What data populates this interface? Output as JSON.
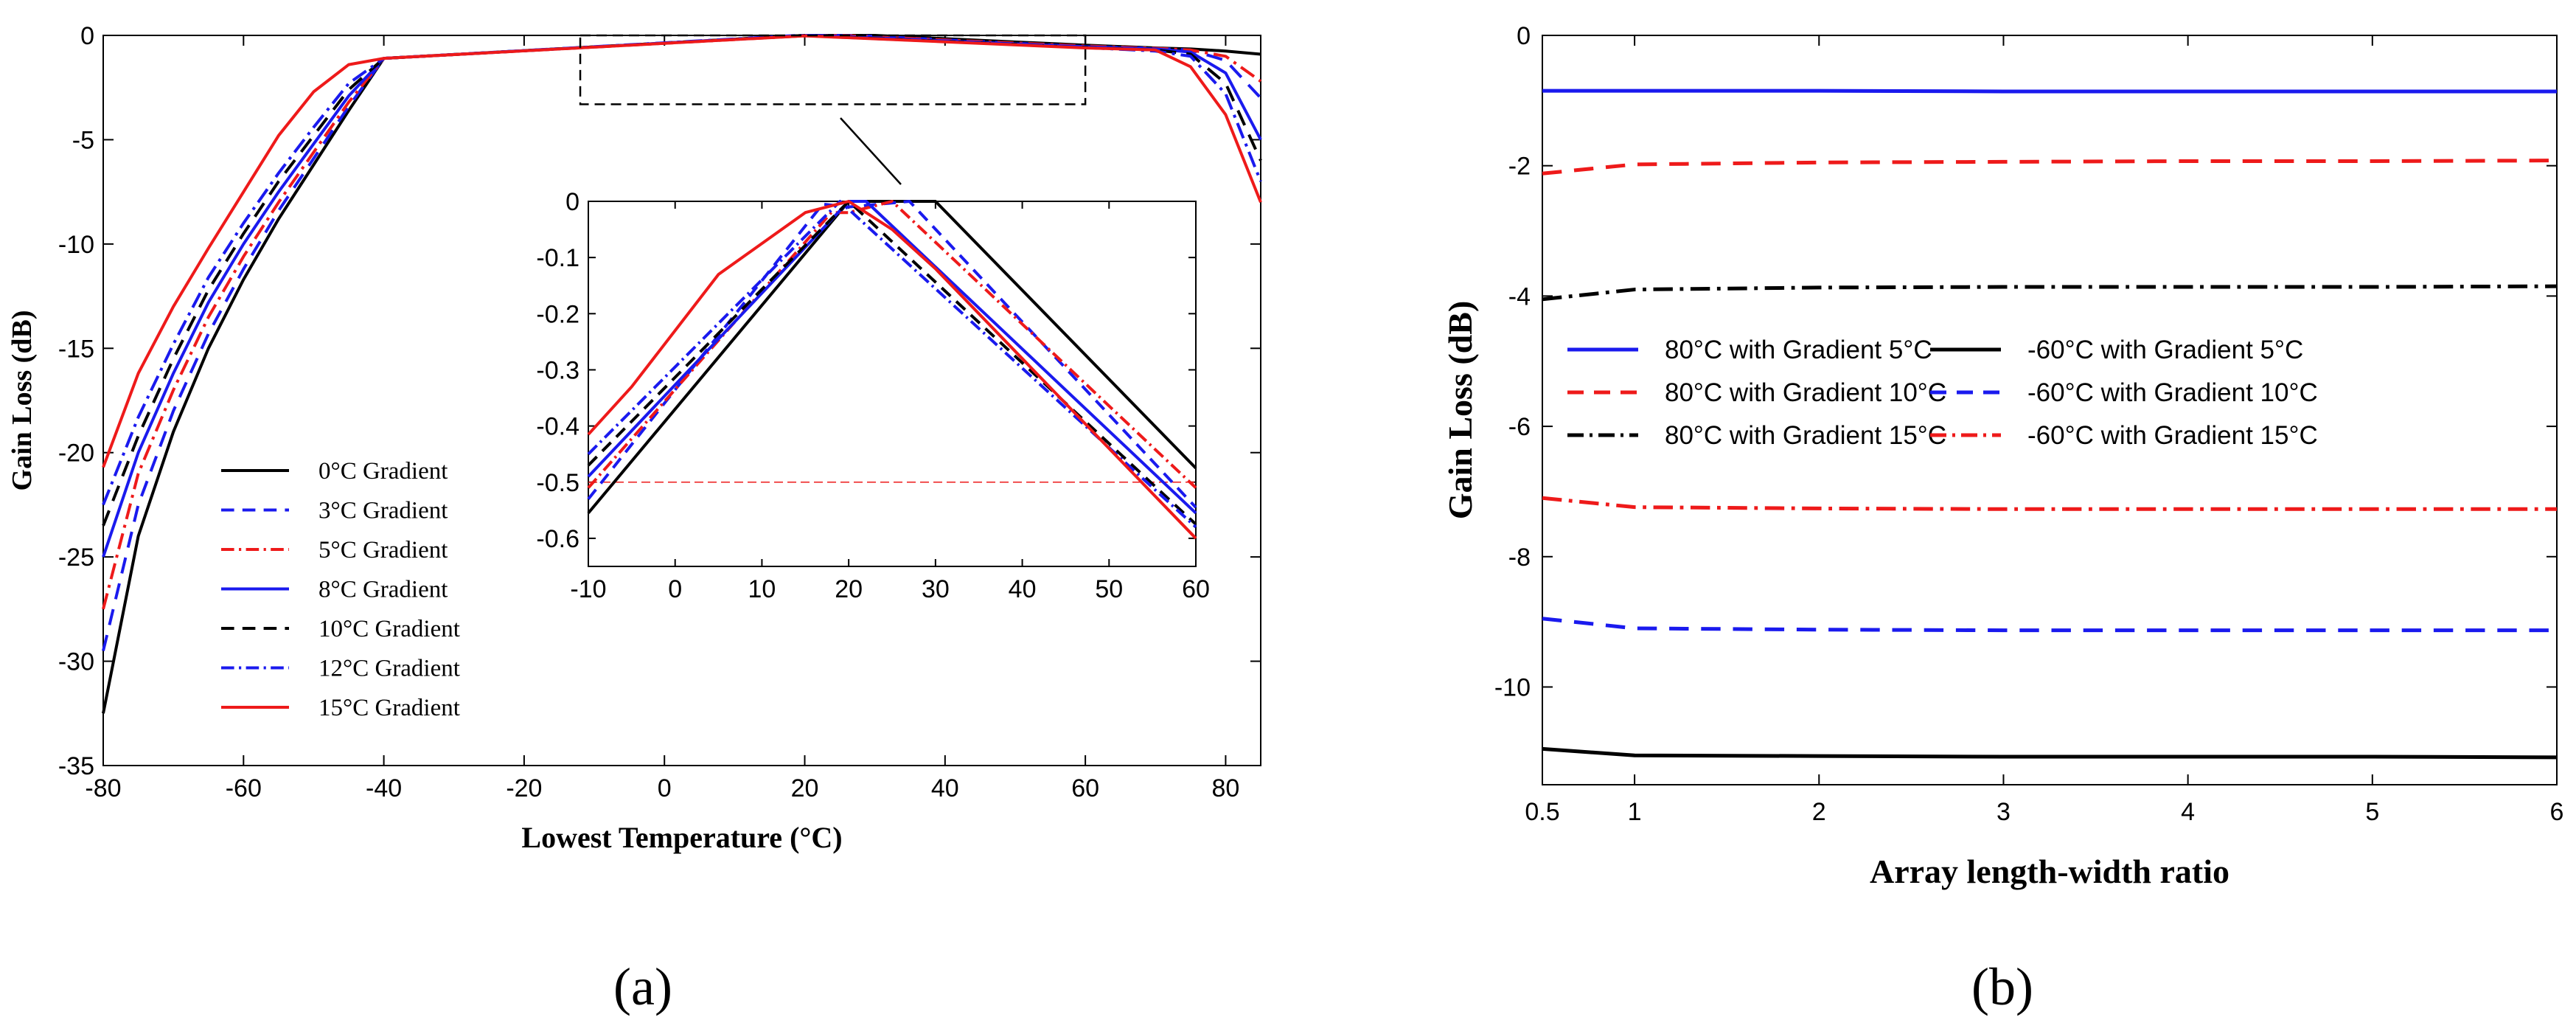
{
  "chart_data": [
    {
      "panel": "a",
      "type": "line",
      "panel_label": "(a)",
      "xlabel": "Lowest Temperature (°C)",
      "ylabel": "Gain Loss (dB)",
      "xlim": [
        -80,
        85
      ],
      "ylim": [
        -35,
        0
      ],
      "xticks": [
        "-80",
        "-60",
        "-40",
        "-20",
        "0",
        "20",
        "40",
        "60",
        "80"
      ],
      "yticks": [
        "0",
        "-5",
        "-10",
        "-15",
        "-20",
        "-25",
        "-30",
        "-35"
      ],
      "series": [
        {
          "name": "0°C Gradient",
          "color": "#000000",
          "style": "solid",
          "x": [
            -80,
            -75,
            -70,
            -65,
            -60,
            -55,
            -50,
            -45,
            -40,
            20,
            30,
            60,
            70,
            75,
            80,
            85
          ],
          "y": [
            -32.5,
            -24.0,
            -19.0,
            -15.0,
            -11.7,
            -8.8,
            -6.2,
            -3.6,
            -1.1,
            0.0,
            0.0,
            -0.47,
            -0.6,
            -0.65,
            -0.75,
            -0.9
          ]
        },
        {
          "name": "3°C Gradient",
          "color": "#1a1aee",
          "style": "dashed",
          "x": [
            -80,
            -75,
            -70,
            -65,
            -60,
            -55,
            -50,
            -45,
            -40,
            20,
            27,
            60,
            70,
            75,
            80,
            85
          ],
          "y": [
            -29.5,
            -22.5,
            -18.0,
            -14.3,
            -11.2,
            -8.4,
            -5.9,
            -3.4,
            -1.1,
            -0.01,
            0.0,
            -0.54,
            -0.62,
            -0.7,
            -1.2,
            -3.0
          ]
        },
        {
          "name": "5°C Gradient",
          "color": "#ee1a1a",
          "style": "dashdot",
          "x": [
            -80,
            -75,
            -70,
            -65,
            -60,
            -55,
            -50,
            -45,
            -40,
            20,
            25,
            60,
            70,
            75,
            80,
            85
          ],
          "y": [
            -27.5,
            -21.0,
            -17.0,
            -13.5,
            -10.6,
            -8.0,
            -5.6,
            -3.2,
            -1.1,
            -0.02,
            0.0,
            -0.51,
            -0.62,
            -0.7,
            -1.0,
            -2.2
          ]
        },
        {
          "name": "8°C Gradient",
          "color": "#1a1aee",
          "style": "solid",
          "x": [
            -80,
            -75,
            -70,
            -65,
            -60,
            -55,
            -50,
            -45,
            -40,
            20,
            22,
            60,
            70,
            75,
            80,
            85
          ],
          "y": [
            -25.0,
            -20.0,
            -16.2,
            -12.8,
            -10.0,
            -7.5,
            -5.2,
            -2.9,
            -1.1,
            0.0,
            0.0,
            -0.55,
            -0.65,
            -0.8,
            -1.8,
            -5.0
          ]
        },
        {
          "name": "10°C Gradient",
          "color": "#000000",
          "style": "dashed",
          "x": [
            -80,
            -75,
            -70,
            -65,
            -60,
            -55,
            -50,
            -45,
            -40,
            20,
            60,
            70,
            75,
            80,
            85
          ],
          "y": [
            -23.5,
            -19.2,
            -15.5,
            -12.2,
            -9.5,
            -7.0,
            -4.8,
            -2.6,
            -1.1,
            0.0,
            -0.58,
            -0.7,
            -0.9,
            -2.3,
            -6.0
          ]
        },
        {
          "name": "12°C Gradient",
          "color": "#1a1aee",
          "style": "dashdot",
          "x": [
            -80,
            -75,
            -70,
            -65,
            -60,
            -55,
            -50,
            -45,
            -40,
            19,
            60,
            70,
            75,
            80,
            85
          ],
          "y": [
            -22.5,
            -18.3,
            -14.8,
            -11.6,
            -9.0,
            -6.6,
            -4.4,
            -2.3,
            -1.1,
            0.0,
            -0.58,
            -0.75,
            -1.0,
            -2.8,
            -7.0
          ]
        },
        {
          "name": "15°C Gradient",
          "color": "#ee1a1a",
          "style": "solid",
          "x": [
            -80,
            -75,
            -70,
            -65,
            -60,
            -55,
            -50,
            -45,
            -40,
            20,
            60,
            70,
            75,
            80,
            85
          ],
          "y": [
            -20.7,
            -16.2,
            -13.0,
            -10.2,
            -7.5,
            -4.8,
            -2.7,
            -1.4,
            -1.1,
            -0.02,
            -0.6,
            -0.7,
            -1.5,
            -3.8,
            -8.0
          ]
        }
      ],
      "zoom_box": {
        "x": [
          -12,
          60
        ],
        "y": [
          -3.3,
          0
        ]
      },
      "inset": {
        "xlim": [
          -10,
          60
        ],
        "ylim": [
          -0.65,
          0
        ],
        "xticks": [
          "-10",
          "0",
          "10",
          "20",
          "30",
          "40",
          "50",
          "60"
        ],
        "yticks": [
          "0",
          "-0.1",
          "-0.2",
          "-0.3",
          "-0.4",
          "-0.5",
          "-0.6"
        ],
        "reference_line": -0.5,
        "series": [
          {
            "name": "0°C Gradient",
            "x": [
              -10,
              20,
              30,
              60
            ],
            "y": [
              -0.555,
              0.0,
              0.0,
              -0.475
            ]
          },
          {
            "name": "3°C Gradient",
            "x": [
              -10,
              17,
              20,
              27,
              60
            ],
            "y": [
              -0.53,
              -0.005,
              -0.01,
              0.0,
              -0.545
            ]
          },
          {
            "name": "5°C Gradient",
            "x": [
              -10,
              18,
              20,
              25,
              60
            ],
            "y": [
              -0.51,
              -0.02,
              -0.02,
              0.0,
              -0.51
            ]
          },
          {
            "name": "8°C Gradient",
            "x": [
              -10,
              20,
              22,
              60
            ],
            "y": [
              -0.49,
              0.0,
              0.0,
              -0.555
            ]
          },
          {
            "name": "10°C Gradient",
            "x": [
              -10,
              20,
              60
            ],
            "y": [
              -0.47,
              0.0,
              -0.575
            ]
          },
          {
            "name": "12°C Gradient",
            "x": [
              -10,
              19,
              60
            ],
            "y": [
              -0.45,
              0.0,
              -0.58
            ]
          },
          {
            "name": "15°C Gradient",
            "x": [
              -10,
              -5,
              5,
              15,
              20,
              25,
              30,
              60
            ],
            "y": [
              -0.415,
              -0.33,
              -0.13,
              -0.02,
              0.0,
              -0.05,
              -0.12,
              -0.6
            ]
          }
        ]
      }
    },
    {
      "panel": "b",
      "type": "line",
      "panel_label": "(b)",
      "xlabel": "Array length-width ratio",
      "ylabel": "Gain Loss (dB)",
      "xlim": [
        0.5,
        6
      ],
      "ylim": [
        -11.5,
        0
      ],
      "xticks": [
        "0.5",
        "1",
        "2",
        "3",
        "4",
        "5",
        "6"
      ],
      "xtick_values": [
        0.5,
        1,
        2,
        3,
        4,
        5,
        6
      ],
      "yticks": [
        "0",
        "-2",
        "-4",
        "-6",
        "-8",
        "-10"
      ],
      "ytick_values": [
        0,
        -2,
        -4,
        -6,
        -8,
        -10
      ],
      "series": [
        {
          "name": "80°C with Gradient 5°C",
          "color": "#1a1aee",
          "style": "solid",
          "x": [
            0.5,
            1,
            2,
            3,
            4,
            5,
            6
          ],
          "y": [
            -0.85,
            -0.85,
            -0.85,
            -0.86,
            -0.86,
            -0.86,
            -0.86
          ]
        },
        {
          "name": "80°C with Gradient 10°C",
          "color": "#ee1a1a",
          "style": "dashed",
          "x": [
            0.5,
            1,
            2,
            3,
            4,
            5,
            6
          ],
          "y": [
            -2.12,
            -1.98,
            -1.95,
            -1.94,
            -1.93,
            -1.93,
            -1.92
          ]
        },
        {
          "name": "80°C with Gradient 15°C",
          "color": "#000000",
          "style": "dashdot",
          "x": [
            0.5,
            1,
            2,
            3,
            4,
            5,
            6
          ],
          "y": [
            -4.05,
            -3.9,
            -3.87,
            -3.86,
            -3.86,
            -3.86,
            -3.85
          ]
        },
        {
          "name": "-60°C with Gradient 5°C",
          "color": "#000000",
          "style": "solid",
          "x": [
            0.5,
            1,
            2,
            3,
            4,
            5,
            6
          ],
          "y": [
            -10.95,
            -11.05,
            -11.06,
            -11.07,
            -11.07,
            -11.07,
            -11.08
          ]
        },
        {
          "name": "-60°C with Gradient 10°C",
          "color": "#1a1aee",
          "style": "dashed",
          "x": [
            0.5,
            1,
            2,
            3,
            4,
            5,
            6
          ],
          "y": [
            -8.95,
            -9.1,
            -9.12,
            -9.13,
            -9.13,
            -9.13,
            -9.13
          ]
        },
        {
          "name": "-60°C with Gradient 15°C",
          "color": "#ee1a1a",
          "style": "dashdot",
          "x": [
            0.5,
            1,
            2,
            3,
            4,
            5,
            6
          ],
          "y": [
            -7.1,
            -7.24,
            -7.26,
            -7.27,
            -7.27,
            -7.27,
            -7.27
          ]
        }
      ]
    }
  ]
}
